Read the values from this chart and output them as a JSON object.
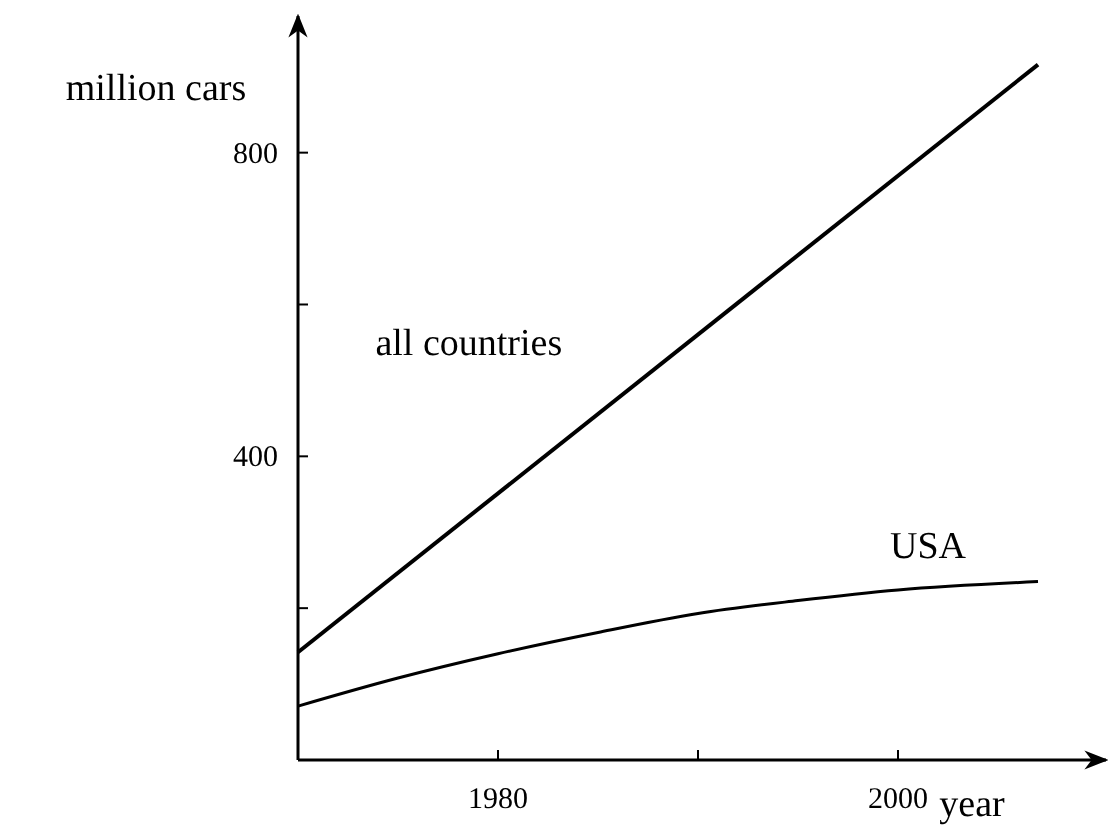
{
  "chart_data": {
    "type": "line",
    "xlabel": "year",
    "ylabel": "million cars",
    "xlim": [
      1970,
      2010.4
    ],
    "ylim": [
      0,
      980
    ],
    "xticks": [
      {
        "value": 1980,
        "label": "1980"
      },
      {
        "value": 1990,
        "label": null
      },
      {
        "value": 2000,
        "label": "2000"
      }
    ],
    "yticks": [
      {
        "value": 200,
        "label": null
      },
      {
        "value": 400,
        "label": "400"
      },
      {
        "value": 600,
        "label": null
      },
      {
        "value": 800,
        "label": "800"
      }
    ],
    "grid": false,
    "marker": "none",
    "line_style": "solid",
    "series": [
      {
        "name": "all countries",
        "color": "#000000",
        "x": [
          1970,
          2007
        ],
        "values": [
          142,
          916
        ]
      },
      {
        "name": "USA",
        "color": "#000000",
        "x": [
          1970,
          1975,
          1980,
          1985,
          1990,
          1995,
          2000,
          2007
        ],
        "values": [
          71,
          108,
          140,
          168,
          193,
          210,
          224,
          235
        ]
      }
    ]
  }
}
